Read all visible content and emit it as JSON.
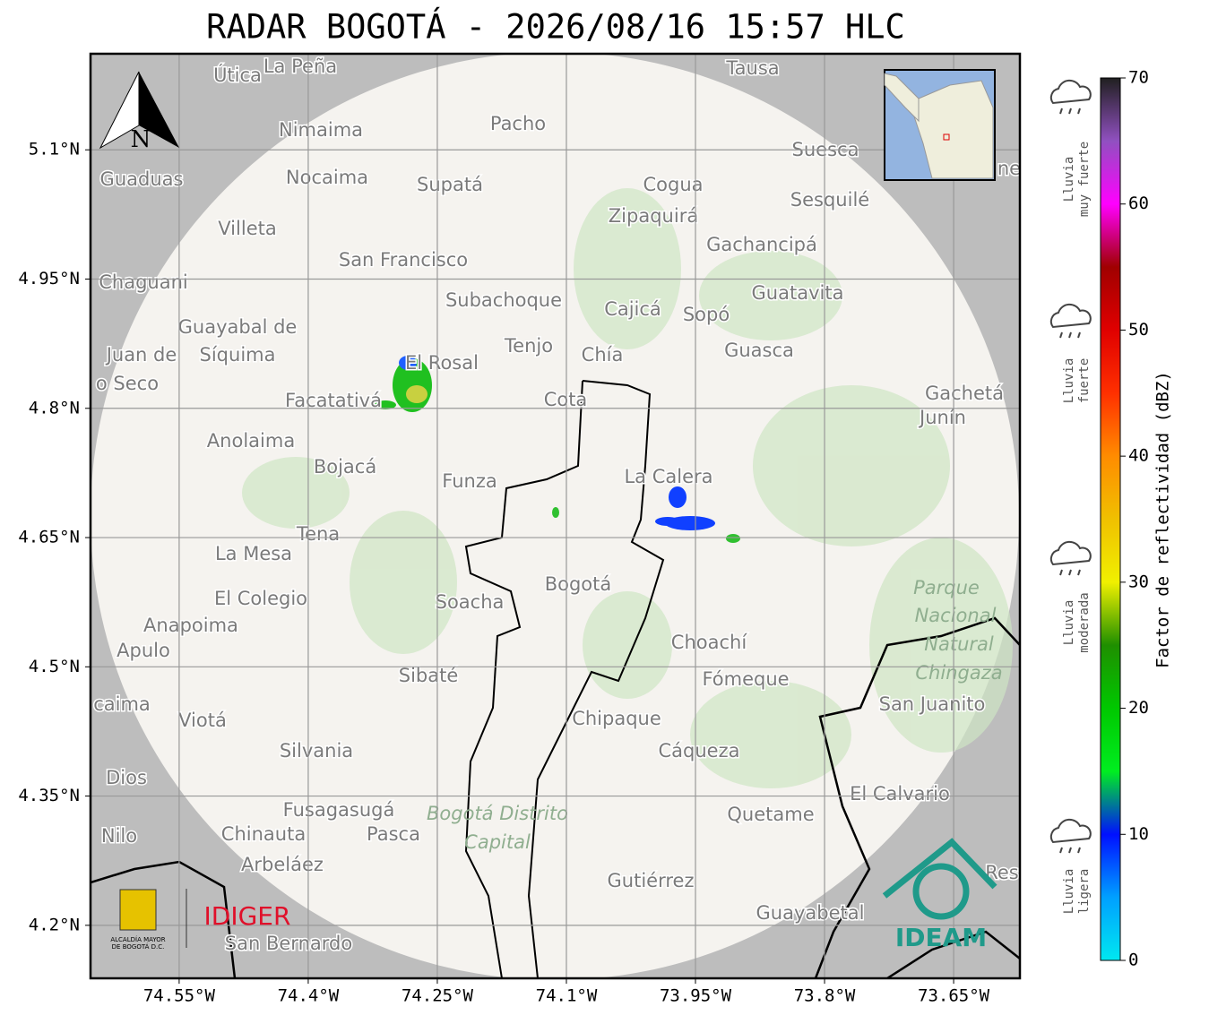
{
  "title": "RADAR BOGOTÁ - 2026/08/16 15:57 HLC",
  "map": {
    "xlim": [
      -74.653,
      -73.573
    ],
    "ylim": [
      4.1385,
      5.2115
    ],
    "grid": true,
    "xticks": [
      {
        "value": -74.55,
        "label": "74.55°W"
      },
      {
        "value": -74.4,
        "label": "74.4°W"
      },
      {
        "value": -74.25,
        "label": "74.25°W"
      },
      {
        "value": -74.1,
        "label": "74.1°W"
      },
      {
        "value": -73.95,
        "label": "73.95°W"
      },
      {
        "value": -73.8,
        "label": "73.8°W"
      },
      {
        "value": -73.65,
        "label": "73.65°W"
      }
    ],
    "yticks": [
      {
        "value": 5.1,
        "label": "5.1°N"
      },
      {
        "value": 4.95,
        "label": "4.95°N"
      },
      {
        "value": 4.8,
        "label": "4.8°N"
      },
      {
        "value": 4.65,
        "label": "4.65°N"
      },
      {
        "value": 4.5,
        "label": "4.5°N"
      },
      {
        "value": 4.35,
        "label": "4.35°N"
      },
      {
        "value": 4.2,
        "label": "4.2°N"
      }
    ],
    "north": "N",
    "places": [
      "Útica",
      "La Peña",
      "Tausa",
      "Nimaima",
      "Pacho",
      "Guaduas",
      "Nocaima",
      "Supatá",
      "Cogua",
      "Suesca",
      "Sesquilé",
      "Villeta",
      "Zipaquirá",
      "Gachancipá",
      "San Francisco",
      "Chaguani",
      "Guatavita",
      "Subachoque",
      "Cajicá",
      "Sopó",
      "Guayabal de",
      "Síquima",
      "Tenjo",
      "Chía",
      "Guasca",
      "Juan de",
      "o Seco",
      "El Rosal",
      "Facatativá",
      "Cota",
      "Gachetá",
      "Junín",
      "Anolaima",
      "Bojacá",
      "Funza",
      "La Calera",
      "Tena",
      "La Mesa",
      "El Colegio",
      "Soacha",
      "Bogotá",
      "Anapoima",
      "Apulo",
      "Choachí",
      "Sibaté",
      "Fómeque",
      "San Juanito",
      "caima",
      "Viotá",
      "Chipaque",
      "Silvania",
      "Cáqueza",
      "Dios",
      "El Calvario",
      "Fusagasugá",
      "Quetame",
      "Nilo",
      "Chinauta",
      "Pasca",
      "Arbeláez",
      "Gutiérrez",
      "Guayabetal",
      "San Bernardo",
      "Res",
      "ne"
    ],
    "parks": [
      "Parque",
      "Nacional",
      "Natural",
      "Chingaza",
      "Bogotá Distrito",
      "Capital"
    ]
  },
  "colorbar": {
    "label": "Factor de reflectividad (dBZ)",
    "lim": [
      0,
      70
    ],
    "ticks": [
      0,
      10,
      20,
      30,
      40,
      50,
      60,
      70
    ],
    "colors": [
      "#00e8f0",
      "#00a0ff",
      "#0010ff",
      "#00ee20",
      "#00c800",
      "#1f8f00",
      "#f0f000",
      "#f0c000",
      "#ff8c00",
      "#ff3000",
      "#e00000",
      "#a00000",
      "#ff00ff",
      "#9050c0",
      "#202020"
    ]
  },
  "legend": [
    {
      "lines": [
        "Lluvia",
        "muy fuerte"
      ]
    },
    {
      "lines": [
        "Lluvia",
        "fuerte"
      ]
    },
    {
      "lines": [
        "Lluvia",
        "moderada"
      ]
    },
    {
      "lines": [
        "Lluvia",
        "ligera"
      ]
    }
  ],
  "logos": {
    "alcaldia": "ALCALDÍA MAYOR",
    "alcaldia2": "DE BOGOTÁ D.C.",
    "idiger": "IDIGER",
    "ideam": "IDEAM"
  }
}
